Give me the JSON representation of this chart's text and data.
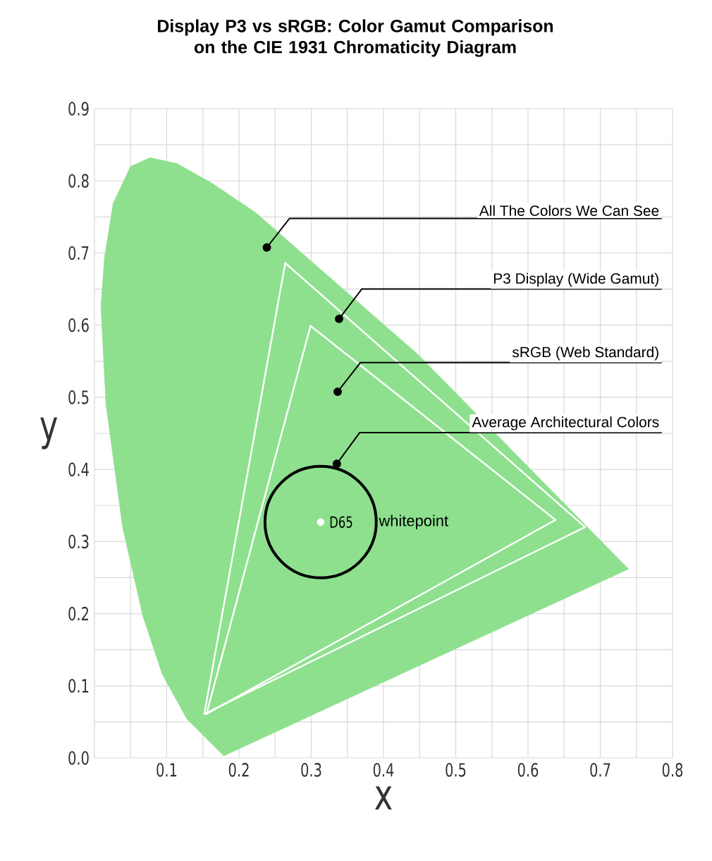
{
  "chart_data": {
    "type": "line",
    "title": "Display P3 vs sRGB: Color Gamut Comparison on the CIE 1931 Chromaticity Diagram",
    "xlabel": "x",
    "ylabel": "y",
    "xlim": [
      0,
      0.8
    ],
    "ylim": [
      0,
      0.9
    ],
    "xticks": [
      {
        "value": 0,
        "label": null
      },
      0.1,
      0.2,
      0.3,
      0.4,
      0.5,
      0.6,
      0.7,
      0.8
    ],
    "yticks": [
      {
        "value": 0,
        "label": "0.0"
      },
      0.1,
      0.2,
      0.3,
      0.4,
      0.5,
      0.6,
      0.7,
      0.8,
      0.9
    ],
    "grid": true,
    "marker": "none",
    "line_style": "solid",
    "series": [
      {
        "type": "area",
        "color": "#8ee08e",
        "x": [
          0.179,
          0.128,
          0.094,
          0.067,
          0.039,
          0.016,
          0.009,
          0.014,
          0.026,
          0.05,
          0.077,
          0.114,
          0.162,
          0.223,
          0.448,
          0.739
        ],
        "values": [
          0.003,
          0.054,
          0.116,
          0.197,
          0.32,
          0.49,
          0.626,
          0.694,
          0.769,
          0.82,
          0.832,
          0.824,
          0.797,
          0.756,
          0.559,
          0.262
        ]
      },
      {
        "color": "#ffffff",
        "x": [
          0.152,
          0.264
        ],
        "values": [
          0.061,
          0.686
        ]
      },
      {
        "color": "#ffffff",
        "x": [
          0.264,
          0.679
        ],
        "values": [
          0.686,
          0.32
        ]
      },
      {
        "color": "#ffffff",
        "x": [
          0.152,
          0.679
        ],
        "values": [
          0.061,
          0.32
        ]
      },
      {
        "color": "#ffffff",
        "x": [
          0.155,
          0.299
        ],
        "values": [
          0.061,
          0.599
        ]
      },
      {
        "color": "#ffffff",
        "x": [
          0.299,
          0.638
        ],
        "values": [
          0.599,
          0.33
        ]
      },
      {
        "color": "#ffffff",
        "x": [
          0.155,
          0.638
        ],
        "values": [
          0.061,
          0.33
        ]
      },
      {
        "type": "scatter",
        "marker": "circle",
        "color": "#ffffff",
        "x": [
          0.313
        ],
        "values": [
          0.327
        ]
      }
    ],
    "annotations": [
      "All The Colors We Can See",
      "P3 Display (Wide Gamut)",
      "sRGB (Web Standard)",
      "Average Architectural Colors",
      {
        "text": "D65",
        "x": 0.313,
        "y": 0.327
      },
      "whitepoint"
    ]
  }
}
